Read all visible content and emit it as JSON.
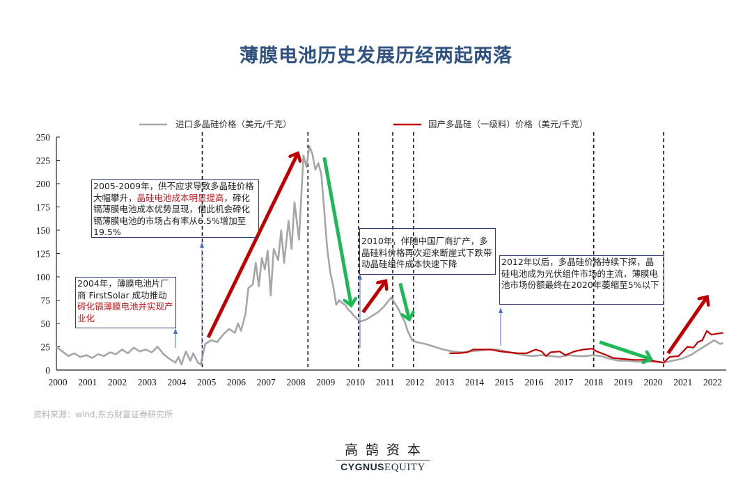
{
  "title": "薄膜电池历史发展历经两起两落",
  "legend": {
    "imported": "进口多晶硅价格（美元/千克）",
    "domestic": "国产多晶硅（一级料）价格（美元/千克）"
  },
  "annotations": [
    {
      "id": "a2004",
      "plain": "2004年，薄膜电池片厂商 FirstSolar 成功推动",
      "red": "碲化镉薄膜电池并实现产业化"
    },
    {
      "id": "a2005",
      "plain1": "2005-2009年，供不应求导致多晶硅价格大幅攀升，",
      "red": "晶硅电池成本明显提高",
      "plain2": "，碲化镉薄膜电池成本优势显现，借此机会碲化镉薄膜电池的市场占有率从6.5%增加至19.5%"
    },
    {
      "id": "a2010",
      "plain": "2010年，伴随中国厂商扩产，多晶硅料价格再次迎来断崖式下跌带动晶硅组件成本快速下降"
    },
    {
      "id": "a2012",
      "plain": "2012年以后，多晶硅价格持续下探，晶硅电池成为光伏组件市场的主流，薄膜电池市场份额最终在2020年萎缩至5%以下"
    }
  ],
  "source": "资料来源：wind,东方财富证券研究所",
  "logo": {
    "cn": "高鹄资本",
    "en_bold": "CYGNUS",
    "en_serif": "EQUITY"
  },
  "colors": {
    "title": "#2f5281",
    "imported": "#a6a6a6",
    "domestic": "#c00000",
    "up_arrow": "#c00000",
    "down_arrow": "#1db954",
    "box_border": "#2c3e6e",
    "pointer": "#4472c4"
  },
  "chart_data": {
    "type": "line",
    "title": "薄膜电池历史发展历经两起两落",
    "xlabel": "",
    "ylabel": "",
    "x_ticks": [
      "2000",
      "2001",
      "2002",
      "2003",
      "2004",
      "2005",
      "2006",
      "2007",
      "2008",
      "2009",
      "2010",
      "2011",
      "2012",
      "2013",
      "2014",
      "2015",
      "2016",
      "2017",
      "2018",
      "2019",
      "2020",
      "2021",
      "2022"
    ],
    "y_ticks": [
      0,
      25,
      50,
      75,
      100,
      125,
      150,
      175,
      200,
      225,
      250
    ],
    "ylim": [
      0,
      250
    ],
    "xlim": [
      2000,
      2022.5
    ],
    "grid": false,
    "legend_position": "top",
    "series": [
      {
        "name": "进口多晶硅价格（美元/千克）",
        "color": "#a6a6a6",
        "points": [
          [
            2000.0,
            25
          ],
          [
            2000.2,
            20
          ],
          [
            2000.4,
            15
          ],
          [
            2000.6,
            18
          ],
          [
            2000.8,
            14
          ],
          [
            2001.0,
            16
          ],
          [
            2001.2,
            13
          ],
          [
            2001.4,
            17
          ],
          [
            2001.6,
            15
          ],
          [
            2001.8,
            19
          ],
          [
            2002.0,
            17
          ],
          [
            2002.2,
            22
          ],
          [
            2002.4,
            18
          ],
          [
            2002.6,
            24
          ],
          [
            2002.8,
            20
          ],
          [
            2003.0,
            22
          ],
          [
            2003.2,
            19
          ],
          [
            2003.4,
            25
          ],
          [
            2003.6,
            17
          ],
          [
            2003.8,
            12
          ],
          [
            2004.0,
            8
          ],
          [
            2004.1,
            14
          ],
          [
            2004.2,
            6
          ],
          [
            2004.35,
            20
          ],
          [
            2004.5,
            10
          ],
          [
            2004.6,
            18
          ],
          [
            2004.75,
            8
          ],
          [
            2004.85,
            6
          ],
          [
            2005.0,
            28
          ],
          [
            2005.2,
            32
          ],
          [
            2005.4,
            30
          ],
          [
            2005.6,
            38
          ],
          [
            2005.8,
            44
          ],
          [
            2006.0,
            40
          ],
          [
            2006.1,
            50
          ],
          [
            2006.2,
            42
          ],
          [
            2006.35,
            60
          ],
          [
            2006.45,
            88
          ],
          [
            2006.6,
            92
          ],
          [
            2006.7,
            115
          ],
          [
            2006.8,
            90
          ],
          [
            2006.9,
            120
          ],
          [
            2007.0,
            108
          ],
          [
            2007.1,
            128
          ],
          [
            2007.2,
            80
          ],
          [
            2007.3,
            130
          ],
          [
            2007.45,
            118
          ],
          [
            2007.55,
            150
          ],
          [
            2007.65,
            115
          ],
          [
            2007.8,
            160
          ],
          [
            2007.9,
            130
          ],
          [
            2008.0,
            180
          ],
          [
            2008.15,
            140
          ],
          [
            2008.3,
            230
          ],
          [
            2008.4,
            218
          ],
          [
            2008.5,
            240
          ],
          [
            2008.6,
            232
          ],
          [
            2008.7,
            215
          ],
          [
            2008.8,
            222
          ],
          [
            2008.9,
            210
          ],
          [
            2009.0,
            170
          ],
          [
            2009.1,
            130
          ],
          [
            2009.2,
            105
          ],
          [
            2009.3,
            90
          ],
          [
            2009.4,
            70
          ],
          [
            2009.5,
            75
          ],
          [
            2009.6,
            72
          ],
          [
            2009.7,
            70
          ],
          [
            2009.8,
            65
          ],
          [
            2009.9,
            62
          ],
          [
            2010.0,
            58
          ],
          [
            2010.2,
            52
          ],
          [
            2010.4,
            54
          ],
          [
            2010.6,
            58
          ],
          [
            2010.8,
            62
          ],
          [
            2011.0,
            68
          ],
          [
            2011.1,
            72
          ],
          [
            2011.25,
            78
          ],
          [
            2011.4,
            70
          ],
          [
            2011.5,
            65
          ],
          [
            2011.6,
            58
          ],
          [
            2011.7,
            52
          ],
          [
            2011.8,
            42
          ],
          [
            2011.95,
            32
          ],
          [
            2012.1,
            30
          ],
          [
            2012.4,
            28
          ],
          [
            2012.7,
            25
          ],
          [
            2013.0,
            22
          ],
          [
            2013.3,
            20
          ],
          [
            2013.6,
            19
          ],
          [
            2013.9,
            20
          ],
          [
            2014.2,
            21
          ],
          [
            2014.5,
            22
          ],
          [
            2014.8,
            22
          ],
          [
            2015.1,
            20
          ],
          [
            2015.4,
            18
          ],
          [
            2015.7,
            16
          ],
          [
            2016.0,
            15
          ],
          [
            2016.3,
            16
          ],
          [
            2016.6,
            15
          ],
          [
            2016.9,
            14
          ],
          [
            2017.2,
            16
          ],
          [
            2017.5,
            15
          ],
          [
            2017.8,
            15
          ],
          [
            2018.0,
            16
          ],
          [
            2018.3,
            15
          ],
          [
            2018.6,
            12
          ],
          [
            2018.9,
            10
          ],
          [
            2019.2,
            10
          ],
          [
            2019.5,
            9
          ],
          [
            2019.8,
            9
          ],
          [
            2020.1,
            9
          ],
          [
            2020.4,
            8
          ],
          [
            2020.7,
            10
          ],
          [
            2021.0,
            12
          ],
          [
            2021.3,
            16
          ],
          [
            2021.6,
            22
          ],
          [
            2021.9,
            28
          ],
          [
            2022.1,
            32
          ],
          [
            2022.3,
            28
          ],
          [
            2022.4,
            29
          ]
        ]
      },
      {
        "name": "国产多晶硅（一级料）价格（美元/千克）",
        "color": "#c00000",
        "points": [
          [
            2013.2,
            18
          ],
          [
            2013.5,
            18
          ],
          [
            2013.8,
            19
          ],
          [
            2014.0,
            22
          ],
          [
            2014.3,
            22
          ],
          [
            2014.6,
            22
          ],
          [
            2014.9,
            20
          ],
          [
            2015.2,
            19
          ],
          [
            2015.5,
            18
          ],
          [
            2015.8,
            18
          ],
          [
            2016.1,
            22
          ],
          [
            2016.3,
            20
          ],
          [
            2016.45,
            15
          ],
          [
            2016.6,
            19
          ],
          [
            2016.9,
            20
          ],
          [
            2017.1,
            16
          ],
          [
            2017.4,
            20
          ],
          [
            2017.7,
            22
          ],
          [
            2018.0,
            23
          ],
          [
            2018.15,
            20
          ],
          [
            2018.4,
            17
          ],
          [
            2018.7,
            13
          ],
          [
            2019.0,
            12
          ],
          [
            2019.4,
            11
          ],
          [
            2019.8,
            11
          ],
          [
            2020.2,
            9
          ],
          [
            2020.4,
            8
          ],
          [
            2020.6,
            14
          ],
          [
            2020.9,
            15
          ],
          [
            2021.2,
            25
          ],
          [
            2021.4,
            24
          ],
          [
            2021.55,
            30
          ],
          [
            2021.7,
            32
          ],
          [
            2021.85,
            42
          ],
          [
            2022.0,
            38
          ],
          [
            2022.2,
            39
          ],
          [
            2022.4,
            40
          ]
        ]
      }
    ],
    "vertical_dashed_lines": [
      2004.9,
      2008.45,
      2010.15,
      2011.3,
      2012.0,
      2018.05,
      2020.4
    ],
    "annotation_arrows": [
      {
        "type": "up",
        "color": "#c00000",
        "from": [
          2005.1,
          35
        ],
        "to": [
          2008.1,
          232
        ]
      },
      {
        "type": "down",
        "color": "#1db954",
        "from": [
          2009.0,
          228
        ],
        "to": [
          2009.9,
          70
        ]
      },
      {
        "type": "up",
        "color": "#c00000",
        "from": [
          2010.3,
          62
        ],
        "to": [
          2011.05,
          95
        ]
      },
      {
        "type": "down",
        "color": "#1db954",
        "from": [
          2011.55,
          93
        ],
        "to": [
          2011.85,
          55
        ]
      },
      {
        "type": "down",
        "color": "#1db954",
        "from": [
          2018.25,
          30
        ],
        "to": [
          2019.95,
          12
        ]
      },
      {
        "type": "up",
        "color": "#c00000",
        "from": [
          2020.55,
          18
        ],
        "to": [
          2021.85,
          78
        ]
      }
    ]
  }
}
